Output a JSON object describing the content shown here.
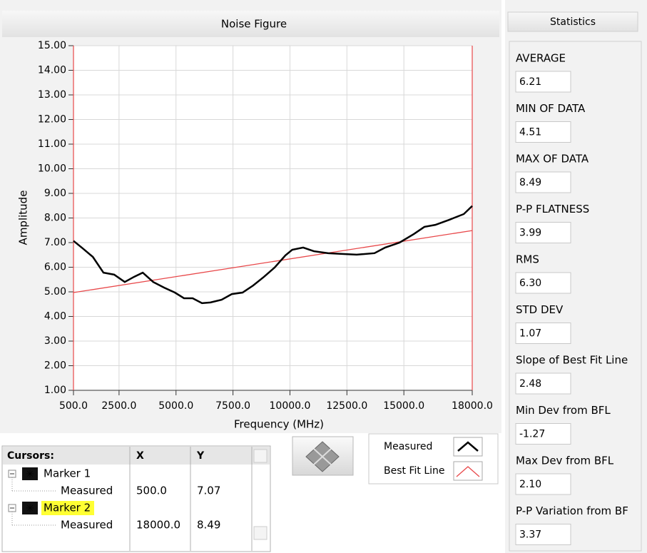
{
  "chart_data": {
    "type": "line",
    "title": "Noise Figure",
    "x_label": "Frequency (MHz)",
    "y_label": "Amplitude",
    "xlim": [
      500,
      18000
    ],
    "xticks": [
      {
        "value": 500,
        "label": "500.0"
      },
      {
        "value": 2500,
        "label": "2500.0"
      },
      {
        "value": 5000,
        "label": "5000.0"
      },
      {
        "value": 7500,
        "label": "7500.0"
      },
      {
        "value": 10000,
        "label": "10000.0"
      },
      {
        "value": 12500,
        "label": "12500.0"
      },
      {
        "value": 15000,
        "label": "15000.0"
      },
      {
        "value": 18000,
        "label": "18000.0"
      }
    ],
    "ylim": [
      1,
      15
    ],
    "yticks": [
      {
        "value": 1,
        "label": "1.00"
      },
      {
        "value": 2,
        "label": "2.00"
      },
      {
        "value": 3,
        "label": "3.00"
      },
      {
        "value": 4,
        "label": "4.00"
      },
      {
        "value": 5,
        "label": "5.00"
      },
      {
        "value": 6,
        "label": "6.00"
      },
      {
        "value": 7,
        "label": "7.00"
      },
      {
        "value": 8,
        "label": "8.00"
      },
      {
        "value": 9,
        "label": "9.00"
      },
      {
        "value": 10,
        "label": "10.00"
      },
      {
        "value": 11,
        "label": "11.00"
      },
      {
        "value": 12,
        "label": "12.00"
      },
      {
        "value": 13,
        "label": "13.00"
      },
      {
        "value": 14,
        "label": "14.00"
      },
      {
        "value": 15,
        "label": "15.00"
      }
    ],
    "grid": true,
    "series": [
      {
        "name": "Measured",
        "color": "#000000",
        "x": [
          500,
          900,
          1350,
          1815,
          2285,
          2750,
          3160,
          3540,
          4000,
          4480,
          4950,
          5350,
          5730,
          6140,
          6510,
          7000,
          7450,
          7920,
          8390,
          8860,
          9330,
          9800,
          10100,
          10580,
          11050,
          11680,
          12300,
          12930,
          13710,
          14180,
          14810,
          15440,
          15900,
          16380,
          17000,
          17630,
          18000
        ],
        "values": [
          7.07,
          6.77,
          6.42,
          5.78,
          5.7,
          5.4,
          5.61,
          5.78,
          5.4,
          5.17,
          4.97,
          4.74,
          4.74,
          4.54,
          4.57,
          4.68,
          4.91,
          4.97,
          5.26,
          5.61,
          5.99,
          6.48,
          6.71,
          6.8,
          6.65,
          6.57,
          6.54,
          6.51,
          6.57,
          6.8,
          7.0,
          7.35,
          7.64,
          7.72,
          7.93,
          8.16,
          8.49
        ]
      },
      {
        "name": "Best Fit Line",
        "color": "#e8484a",
        "x": [
          500,
          18000
        ],
        "values": [
          4.97,
          7.49
        ]
      }
    ]
  },
  "cursors": {
    "title": "Cursors:",
    "columns": [
      "X",
      "Y"
    ],
    "rows": [
      {
        "name": "Marker 1",
        "plot": "Measured",
        "x": "500.0",
        "y": "7.07"
      },
      {
        "name": "Marker 2",
        "plot": "Measured",
        "x": "18000.0",
        "y": "8.49"
      }
    ]
  },
  "statistics": {
    "title": "Statistics",
    "items": [
      {
        "label": "AVERAGE",
        "value": "6.21"
      },
      {
        "label": "MIN OF DATA",
        "value": "4.51"
      },
      {
        "label": "MAX OF DATA",
        "value": "8.49"
      },
      {
        "label": "P-P FLATNESS",
        "value": "3.99"
      },
      {
        "label": "RMS",
        "value": "6.30"
      },
      {
        "label": "STD DEV",
        "value": "1.07"
      },
      {
        "label": "Slope of Best Fit Line",
        "value": "2.48"
      },
      {
        "label": "Min Dev from BFL",
        "value": "-1.27"
      },
      {
        "label": "Max Dev from BFL",
        "value": "2.10"
      },
      {
        "label": "P-P Variation from BF",
        "value": "3.37"
      }
    ]
  }
}
